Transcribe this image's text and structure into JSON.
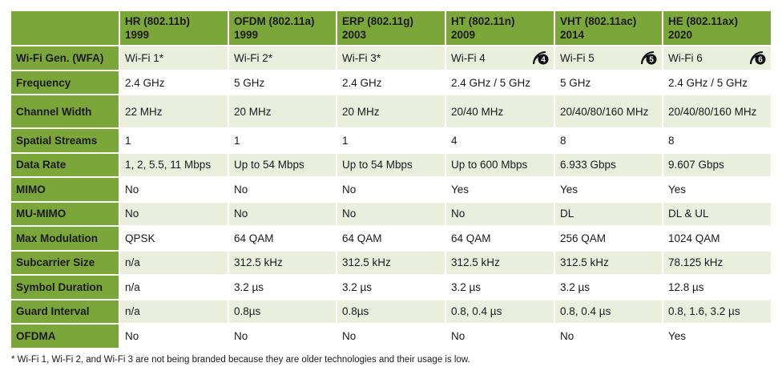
{
  "header": {
    "columns": [
      {
        "line1": "HR (802.11b)",
        "line2": "1999"
      },
      {
        "line1": "OFDM (802.11a)",
        "line2": "1999"
      },
      {
        "line1": "ERP (802.11g)",
        "line2": "2003"
      },
      {
        "line1": "HT (802.11n)",
        "line2": "2009"
      },
      {
        "line1": "VHT (802.11ac)",
        "line2": "2014"
      },
      {
        "line1": "HE (802.11ax)",
        "line2": "2020"
      }
    ]
  },
  "rows": [
    {
      "label": "Wi-Fi Gen. (WFA)",
      "cells": [
        "Wi-Fi 1*",
        "Wi-Fi 2*",
        "Wi-Fi 3*",
        "Wi-Fi 4",
        "Wi-Fi 5",
        "Wi-Fi 6"
      ]
    },
    {
      "label": "Frequency",
      "cells": [
        "2.4 GHz",
        "5 GHz",
        "2.4 GHz",
        "2.4 GHz / 5 GHz",
        "5 GHz",
        "2.4 GHz / 5 GHz"
      ]
    },
    {
      "label": "Channel Width",
      "cells": [
        "22 MHz",
        "20 MHz",
        "20 MHz",
        "20/40 MHz",
        "20/40/80/160 MHz",
        "20/40/80/160 MHz"
      ]
    },
    {
      "label": "Spatial Streams",
      "cells": [
        "1",
        "1",
        "1",
        "4",
        "8",
        "8"
      ]
    },
    {
      "label": "Data Rate",
      "cells": [
        "1, 2, 5.5, 11 Mbps",
        "Up to 54 Mbps",
        "Up to 54 Mbps",
        "Up to 600 Mbps",
        "6.933 Gbps",
        "9.607 Gbps"
      ]
    },
    {
      "label": "MIMO",
      "cells": [
        "No",
        "No",
        "No",
        "Yes",
        "Yes",
        "Yes"
      ]
    },
    {
      "label": "MU-MIMO",
      "cells": [
        "No",
        "No",
        "No",
        "No",
        "DL",
        "DL & UL"
      ]
    },
    {
      "label": "Max Modulation",
      "cells": [
        "QPSK",
        "64 QAM",
        "64 QAM",
        "64 QAM",
        "256 QAM",
        "1024 QAM"
      ]
    },
    {
      "label": "Subcarrier Size",
      "cells": [
        "n/a",
        "312.5 kHz",
        "312.5 kHz",
        "312.5 kHz",
        "312.5 kHz",
        "78.125 kHz"
      ]
    },
    {
      "label": "Symbol Duration",
      "cells": [
        "n/a",
        "3.2 µs",
        "3.2 µs",
        "3.2 µs",
        "3.2 µs",
        "12.8 µs"
      ]
    },
    {
      "label": "Guard Interval",
      "cells": [
        "n/a",
        "0.8µs",
        "0.8µs",
        "0.8, 0.4 µs",
        "0.8, 0.4 µs",
        "0.8, 1.6, 3.2 µs"
      ]
    },
    {
      "label": "OFDMA",
      "cells": [
        "No",
        "No",
        "No",
        "No",
        "No",
        "Yes"
      ]
    }
  ],
  "badges": {
    "wifi4": {
      "icon": "wifi-4-logo-icon",
      "digit": "4"
    },
    "wifi5": {
      "icon": "wifi-5-logo-icon",
      "digit": "5"
    },
    "wifi6": {
      "icon": "wifi-6-logo-icon",
      "digit": "6"
    }
  },
  "colors": {
    "header_green": "#7aa63a",
    "row_tint": "#e9eedd"
  },
  "footnote": "* Wi-Fi 1, Wi-Fi 2, and Wi-Fi 3 are not being branded because they are older technologies and their usage is low."
}
